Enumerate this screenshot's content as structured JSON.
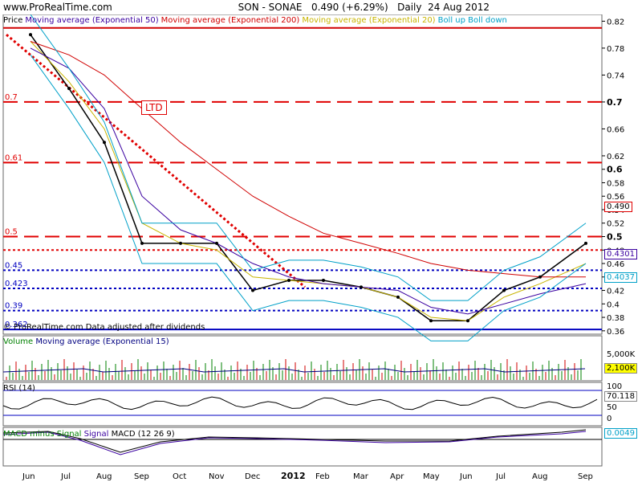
{
  "header": {
    "site": "www.ProRealTime.com",
    "symbol": "SON - SONAE",
    "price": "0.490 (+6.29%)",
    "period": "Daily",
    "date": "24 Aug 2012"
  },
  "legend_main": [
    {
      "label": "Price",
      "color": "#000000"
    },
    {
      "label": "Moving average (Exponential 50)",
      "color": "#3a00a0"
    },
    {
      "label": "Moving average (Exponential 200)",
      "color": "#d00000"
    },
    {
      "label": "Moving average (Exponential 20)",
      "color": "#c8b400"
    },
    {
      "label": "Boll up Boll down",
      "color": "#00a0c8"
    }
  ],
  "footer_note": "© ProRealTime.com Data adjusted after dividends",
  "ltd_label": "LTD",
  "price_value_box": "0.490",
  "value_box_2": "0.4301",
  "value_box_3": "0.4037",
  "horizontal_levels": [
    {
      "label": "0.7",
      "value": 0.7,
      "color": "#e00000",
      "style": "dashed"
    },
    {
      "label": "0.61",
      "value": 0.61,
      "color": "#e00000",
      "style": "dashed"
    },
    {
      "label": "0.5",
      "value": 0.5,
      "color": "#e00000",
      "style": "dashed"
    },
    {
      "label": "0.45",
      "value": 0.45,
      "color": "#0000c0",
      "style": "dotted"
    },
    {
      "label": "0.423",
      "value": 0.423,
      "color": "#0000c0",
      "style": "dotted"
    },
    {
      "label": "0.39",
      "value": 0.39,
      "color": "#0000c0",
      "style": "dotted"
    },
    {
      "label": "0.362",
      "value": 0.362,
      "color": "#0000c0",
      "style": "solid"
    }
  ],
  "volume_panel": {
    "label_parts": [
      "Volume",
      "Moving average (Exponential 15)"
    ],
    "axis_labels": [
      "5,000K"
    ],
    "value_box": "2,100K"
  },
  "rsi_panel": {
    "label": "RSI (14)",
    "axis_labels": [
      "100",
      "50",
      "0"
    ],
    "value_box": "70.118"
  },
  "macd_panel": {
    "label_parts": [
      "MACD minus Signal",
      "Signal",
      "MACD (12 26 9)"
    ],
    "value_box": "0.0049"
  },
  "x_axis_labels": [
    "Jun",
    "Jul",
    "Aug",
    "Sep",
    "Oct",
    "Nov",
    "Dec",
    "2012",
    "Feb",
    "Mar",
    "Apr",
    "May",
    "Jun",
    "Jul",
    "Aug",
    "Sep"
  ],
  "chart_data": {
    "type": "line",
    "title": "SON - SONAE",
    "xlabel": "",
    "ylabel": "",
    "y_ticks": [
      0.82,
      0.78,
      0.74,
      0.7,
      0.66,
      0.62,
      0.6,
      0.58,
      0.56,
      0.54,
      0.52,
      0.5,
      0.48,
      0.46,
      0.44,
      0.42,
      0.4,
      0.38,
      0.36
    ],
    "ylim": [
      0.355,
      0.83
    ],
    "x": [
      "Jun",
      "Jul",
      "Aug",
      "Sep",
      "Oct",
      "Nov",
      "Dec",
      "2012",
      "Feb",
      "Mar",
      "Apr",
      "May",
      "Jun",
      "Jul",
      "Aug",
      "Sep"
    ],
    "series": [
      {
        "name": "Price",
        "values": [
          0.8,
          0.72,
          0.64,
          0.49,
          0.49,
          0.49,
          0.42,
          0.435,
          0.435,
          0.425,
          0.41,
          0.375,
          0.375,
          0.42,
          0.44,
          0.49
        ]
      },
      {
        "name": "Moving average (Exponential 20)",
        "values": [
          0.79,
          0.73,
          0.66,
          0.52,
          0.49,
          0.48,
          0.44,
          0.435,
          0.43,
          0.425,
          0.41,
          0.38,
          0.375,
          0.41,
          0.43,
          0.46
        ]
      },
      {
        "name": "Moving average (Exponential 50)",
        "values": [
          0.78,
          0.75,
          0.69,
          0.56,
          0.51,
          0.49,
          0.46,
          0.44,
          0.43,
          0.425,
          0.42,
          0.395,
          0.385,
          0.4,
          0.415,
          0.43
        ]
      },
      {
        "name": "Moving average (Exponential 200)",
        "values": [
          0.79,
          0.77,
          0.74,
          0.69,
          0.64,
          0.6,
          0.56,
          0.53,
          0.505,
          0.49,
          0.475,
          0.46,
          0.45,
          0.445,
          0.44,
          0.44
        ]
      }
    ]
  }
}
